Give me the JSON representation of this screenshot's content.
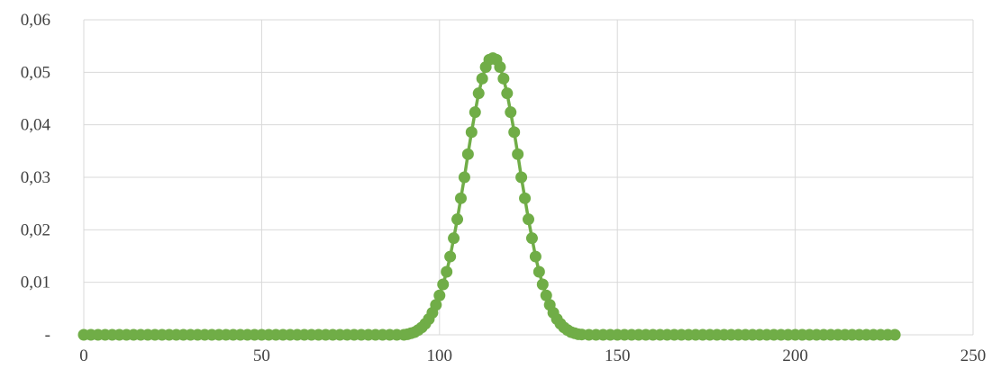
{
  "chart_data": {
    "type": "scatter",
    "title": "",
    "xlabel": "",
    "ylabel": "",
    "xlim": [
      0,
      250
    ],
    "ylim": [
      0,
      0.06
    ],
    "grid": true,
    "legend": "none",
    "x_ticks": [
      0,
      50,
      100,
      150,
      200,
      250
    ],
    "x_tick_labels": [
      "0",
      "50",
      "100",
      "150",
      "200",
      "250"
    ],
    "y_ticks": [
      0,
      0.01,
      0.02,
      0.03,
      0.04,
      0.05,
      0.06
    ],
    "y_tick_labels": [
      "-",
      "0,01",
      "0,02",
      "0,03",
      "0,04",
      "0,05",
      "0,06"
    ],
    "series": [
      {
        "color": "#70ad47",
        "marker": "circle",
        "line": true,
        "x": [
          0,
          2,
          4,
          6,
          8,
          10,
          12,
          14,
          16,
          18,
          20,
          22,
          24,
          26,
          28,
          30,
          32,
          34,
          36,
          38,
          40,
          42,
          44,
          46,
          48,
          50,
          52,
          54,
          56,
          58,
          60,
          62,
          64,
          66,
          68,
          70,
          72,
          74,
          76,
          78,
          80,
          82,
          84,
          86,
          88,
          90,
          91,
          92,
          93,
          94,
          95,
          96,
          97,
          98,
          99,
          100,
          101,
          102,
          103,
          104,
          105,
          106,
          107,
          108,
          109,
          110,
          111,
          112,
          113,
          114,
          115,
          116,
          117,
          118,
          119,
          120,
          121,
          122,
          123,
          124,
          125,
          126,
          127,
          128,
          129,
          130,
          131,
          132,
          133,
          134,
          135,
          136,
          137,
          138,
          139,
          140,
          142,
          144,
          146,
          148,
          150,
          152,
          154,
          156,
          158,
          160,
          162,
          164,
          166,
          168,
          170,
          172,
          174,
          176,
          178,
          180,
          182,
          184,
          186,
          188,
          190,
          192,
          194,
          196,
          198,
          200,
          202,
          204,
          206,
          208,
          210,
          212,
          214,
          216,
          218,
          220,
          222,
          224,
          226,
          228
        ],
        "y": [
          0,
          0,
          0,
          0,
          0,
          0,
          0,
          0,
          0,
          0,
          0,
          0,
          0,
          0,
          0,
          0,
          0,
          0,
          0,
          0,
          0,
          0,
          0,
          0,
          0,
          0,
          0,
          0,
          0,
          0,
          0,
          0,
          0,
          0,
          0,
          0,
          0,
          0,
          0,
          0,
          0,
          0,
          0,
          0,
          0,
          0,
          0.0001,
          0.0003,
          0.0005,
          0.0009,
          0.0014,
          0.0021,
          0.003,
          0.0042,
          0.0057,
          0.0075,
          0.0096,
          0.012,
          0.0149,
          0.0184,
          0.022,
          0.026,
          0.03,
          0.0344,
          0.0386,
          0.0424,
          0.046,
          0.0488,
          0.051,
          0.0524,
          0.0527,
          0.0524,
          0.051,
          0.0488,
          0.046,
          0.0424,
          0.0386,
          0.0344,
          0.03,
          0.026,
          0.022,
          0.0184,
          0.0149,
          0.012,
          0.0096,
          0.0075,
          0.0057,
          0.0042,
          0.003,
          0.0021,
          0.0014,
          0.0009,
          0.0005,
          0.0003,
          0.0001,
          5e-05,
          0,
          0,
          0,
          0,
          0,
          0,
          0,
          0,
          0,
          0,
          0,
          0,
          0,
          0,
          0,
          0,
          0,
          0,
          0,
          0,
          0,
          0,
          0,
          0,
          0,
          0,
          0,
          0,
          0,
          0,
          0,
          0,
          0,
          0,
          0,
          0,
          0,
          0,
          0,
          0,
          0,
          0,
          0,
          0
        ]
      }
    ]
  }
}
